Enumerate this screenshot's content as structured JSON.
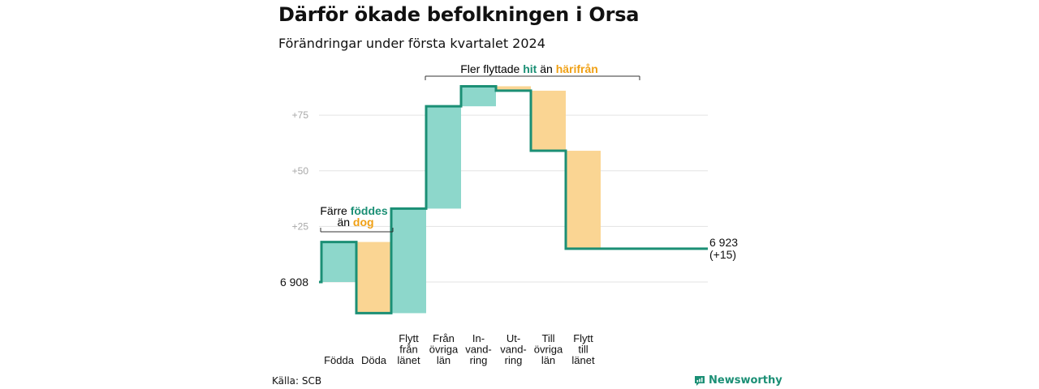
{
  "header": {
    "title": "Därför ökade befolkningen i Orsa",
    "subtitle": "Förändringar under första kvartalet 2024"
  },
  "footer": {
    "source": "Källa: SCB",
    "brand": "Newsworthy"
  },
  "colors": {
    "increase_fill": "#8dd7cb",
    "decrease_fill": "#fad593",
    "line": "#1b8f75",
    "accent_teal": "#1b8f75",
    "accent_orange": "#f0a014",
    "grid": "#e3e3e3",
    "tick": "#a8a8a8"
  },
  "annotations": {
    "births": {
      "prefix": "Färre",
      "highlight1": "föddes",
      "connector": "än",
      "highlight2": "dog"
    },
    "migration": {
      "prefix": "Fler flyttade",
      "highlight1": "hit",
      "connector": "än",
      "highlight2": "härifrån"
    }
  },
  "chart_data": {
    "type": "waterfall",
    "baseline": 0,
    "ylim": [
      -15,
      88
    ],
    "yticks": [
      25,
      50,
      75
    ],
    "ytick_labels": [
      "+25",
      "+50",
      "+75"
    ],
    "start_label": "6 908",
    "end_label_lines": [
      "6 923",
      "(+15)"
    ],
    "grid": true,
    "steps": [
      {
        "category": "Födda",
        "label_lines": [
          "Födda"
        ],
        "delta": 18
      },
      {
        "category": "Döda",
        "label_lines": [
          "Döda"
        ],
        "delta": -32
      },
      {
        "category": "Flytt från länet",
        "label_lines": [
          "Flytt",
          "från",
          "länet"
        ],
        "delta": 47
      },
      {
        "category": "Från övriga län",
        "label_lines": [
          "Från",
          "övriga",
          "län"
        ],
        "delta": 46
      },
      {
        "category": "Invandring",
        "label_lines": [
          "In-",
          "vand-",
          "ring"
        ],
        "delta": 9
      },
      {
        "category": "Utvandring",
        "label_lines": [
          "Ut-",
          "vand-",
          "ring"
        ],
        "delta": -2
      },
      {
        "category": "Till övriga län",
        "label_lines": [
          "Till",
          "övriga",
          "län"
        ],
        "delta": -27
      },
      {
        "category": "Flytt till länet",
        "label_lines": [
          "Flytt",
          "till",
          "länet"
        ],
        "delta": -44
      }
    ],
    "net_change": 15
  }
}
